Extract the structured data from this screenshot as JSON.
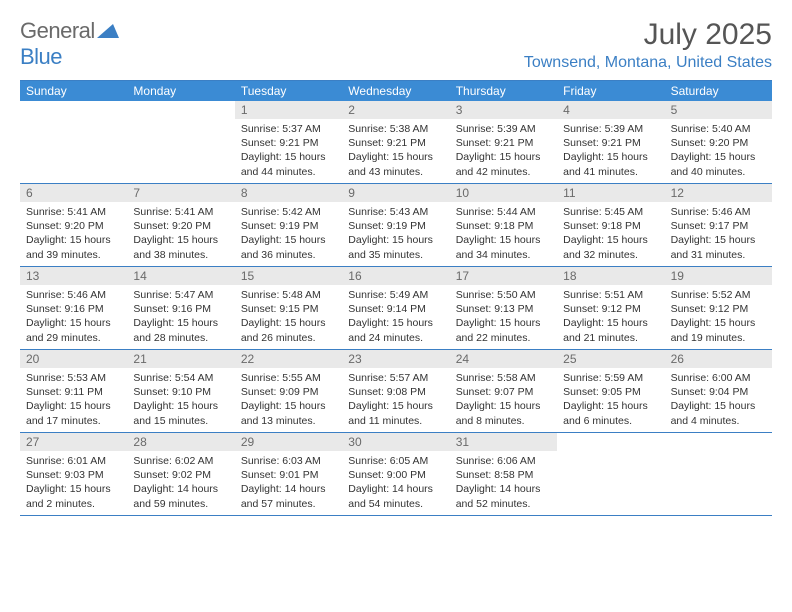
{
  "logo": {
    "general": "General",
    "blue": "Blue"
  },
  "header": {
    "month_title": "July 2025",
    "location": "Townsend, Montana, United States"
  },
  "colors": {
    "accent": "#3b7fc4",
    "header_bg": "#3b8bd4",
    "daynum_bg": "#e9e9e9",
    "text_muted": "#6a6a6a"
  },
  "day_names": [
    "Sunday",
    "Monday",
    "Tuesday",
    "Wednesday",
    "Thursday",
    "Friday",
    "Saturday"
  ],
  "weeks": [
    [
      null,
      null,
      {
        "n": "1",
        "sr": "Sunrise: 5:37 AM",
        "ss": "Sunset: 9:21 PM",
        "dl1": "Daylight: 15 hours",
        "dl2": "and 44 minutes."
      },
      {
        "n": "2",
        "sr": "Sunrise: 5:38 AM",
        "ss": "Sunset: 9:21 PM",
        "dl1": "Daylight: 15 hours",
        "dl2": "and 43 minutes."
      },
      {
        "n": "3",
        "sr": "Sunrise: 5:39 AM",
        "ss": "Sunset: 9:21 PM",
        "dl1": "Daylight: 15 hours",
        "dl2": "and 42 minutes."
      },
      {
        "n": "4",
        "sr": "Sunrise: 5:39 AM",
        "ss": "Sunset: 9:21 PM",
        "dl1": "Daylight: 15 hours",
        "dl2": "and 41 minutes."
      },
      {
        "n": "5",
        "sr": "Sunrise: 5:40 AM",
        "ss": "Sunset: 9:20 PM",
        "dl1": "Daylight: 15 hours",
        "dl2": "and 40 minutes."
      }
    ],
    [
      {
        "n": "6",
        "sr": "Sunrise: 5:41 AM",
        "ss": "Sunset: 9:20 PM",
        "dl1": "Daylight: 15 hours",
        "dl2": "and 39 minutes."
      },
      {
        "n": "7",
        "sr": "Sunrise: 5:41 AM",
        "ss": "Sunset: 9:20 PM",
        "dl1": "Daylight: 15 hours",
        "dl2": "and 38 minutes."
      },
      {
        "n": "8",
        "sr": "Sunrise: 5:42 AM",
        "ss": "Sunset: 9:19 PM",
        "dl1": "Daylight: 15 hours",
        "dl2": "and 36 minutes."
      },
      {
        "n": "9",
        "sr": "Sunrise: 5:43 AM",
        "ss": "Sunset: 9:19 PM",
        "dl1": "Daylight: 15 hours",
        "dl2": "and 35 minutes."
      },
      {
        "n": "10",
        "sr": "Sunrise: 5:44 AM",
        "ss": "Sunset: 9:18 PM",
        "dl1": "Daylight: 15 hours",
        "dl2": "and 34 minutes."
      },
      {
        "n": "11",
        "sr": "Sunrise: 5:45 AM",
        "ss": "Sunset: 9:18 PM",
        "dl1": "Daylight: 15 hours",
        "dl2": "and 32 minutes."
      },
      {
        "n": "12",
        "sr": "Sunrise: 5:46 AM",
        "ss": "Sunset: 9:17 PM",
        "dl1": "Daylight: 15 hours",
        "dl2": "and 31 minutes."
      }
    ],
    [
      {
        "n": "13",
        "sr": "Sunrise: 5:46 AM",
        "ss": "Sunset: 9:16 PM",
        "dl1": "Daylight: 15 hours",
        "dl2": "and 29 minutes."
      },
      {
        "n": "14",
        "sr": "Sunrise: 5:47 AM",
        "ss": "Sunset: 9:16 PM",
        "dl1": "Daylight: 15 hours",
        "dl2": "and 28 minutes."
      },
      {
        "n": "15",
        "sr": "Sunrise: 5:48 AM",
        "ss": "Sunset: 9:15 PM",
        "dl1": "Daylight: 15 hours",
        "dl2": "and 26 minutes."
      },
      {
        "n": "16",
        "sr": "Sunrise: 5:49 AM",
        "ss": "Sunset: 9:14 PM",
        "dl1": "Daylight: 15 hours",
        "dl2": "and 24 minutes."
      },
      {
        "n": "17",
        "sr": "Sunrise: 5:50 AM",
        "ss": "Sunset: 9:13 PM",
        "dl1": "Daylight: 15 hours",
        "dl2": "and 22 minutes."
      },
      {
        "n": "18",
        "sr": "Sunrise: 5:51 AM",
        "ss": "Sunset: 9:12 PM",
        "dl1": "Daylight: 15 hours",
        "dl2": "and 21 minutes."
      },
      {
        "n": "19",
        "sr": "Sunrise: 5:52 AM",
        "ss": "Sunset: 9:12 PM",
        "dl1": "Daylight: 15 hours",
        "dl2": "and 19 minutes."
      }
    ],
    [
      {
        "n": "20",
        "sr": "Sunrise: 5:53 AM",
        "ss": "Sunset: 9:11 PM",
        "dl1": "Daylight: 15 hours",
        "dl2": "and 17 minutes."
      },
      {
        "n": "21",
        "sr": "Sunrise: 5:54 AM",
        "ss": "Sunset: 9:10 PM",
        "dl1": "Daylight: 15 hours",
        "dl2": "and 15 minutes."
      },
      {
        "n": "22",
        "sr": "Sunrise: 5:55 AM",
        "ss": "Sunset: 9:09 PM",
        "dl1": "Daylight: 15 hours",
        "dl2": "and 13 minutes."
      },
      {
        "n": "23",
        "sr": "Sunrise: 5:57 AM",
        "ss": "Sunset: 9:08 PM",
        "dl1": "Daylight: 15 hours",
        "dl2": "and 11 minutes."
      },
      {
        "n": "24",
        "sr": "Sunrise: 5:58 AM",
        "ss": "Sunset: 9:07 PM",
        "dl1": "Daylight: 15 hours",
        "dl2": "and 8 minutes."
      },
      {
        "n": "25",
        "sr": "Sunrise: 5:59 AM",
        "ss": "Sunset: 9:05 PM",
        "dl1": "Daylight: 15 hours",
        "dl2": "and 6 minutes."
      },
      {
        "n": "26",
        "sr": "Sunrise: 6:00 AM",
        "ss": "Sunset: 9:04 PM",
        "dl1": "Daylight: 15 hours",
        "dl2": "and 4 minutes."
      }
    ],
    [
      {
        "n": "27",
        "sr": "Sunrise: 6:01 AM",
        "ss": "Sunset: 9:03 PM",
        "dl1": "Daylight: 15 hours",
        "dl2": "and 2 minutes."
      },
      {
        "n": "28",
        "sr": "Sunrise: 6:02 AM",
        "ss": "Sunset: 9:02 PM",
        "dl1": "Daylight: 14 hours",
        "dl2": "and 59 minutes."
      },
      {
        "n": "29",
        "sr": "Sunrise: 6:03 AM",
        "ss": "Sunset: 9:01 PM",
        "dl1": "Daylight: 14 hours",
        "dl2": "and 57 minutes."
      },
      {
        "n": "30",
        "sr": "Sunrise: 6:05 AM",
        "ss": "Sunset: 9:00 PM",
        "dl1": "Daylight: 14 hours",
        "dl2": "and 54 minutes."
      },
      {
        "n": "31",
        "sr": "Sunrise: 6:06 AM",
        "ss": "Sunset: 8:58 PM",
        "dl1": "Daylight: 14 hours",
        "dl2": "and 52 minutes."
      },
      null,
      null
    ]
  ]
}
